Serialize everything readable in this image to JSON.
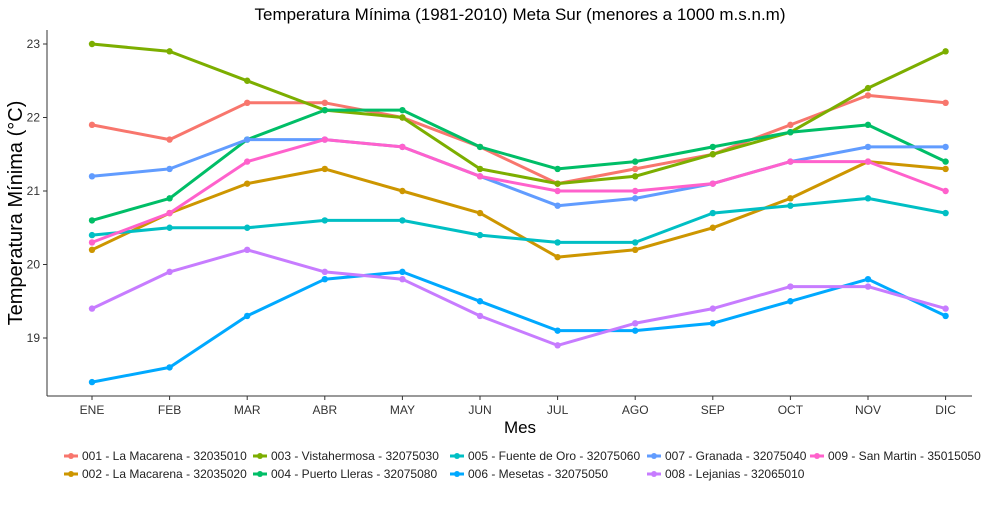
{
  "chart_data": {
    "type": "line",
    "title": "Temperatura Mínima (1981-2010) Meta Sur (menores a 1000 m.s.n.m)",
    "xlabel": "Mes",
    "ylabel": "Temperatura Mínima (°C)",
    "categories": [
      "ENE",
      "FEB",
      "MAR",
      "ABR",
      "MAY",
      "JUN",
      "JUL",
      "AGO",
      "SEP",
      "OCT",
      "NOV",
      "DIC"
    ],
    "ylim": [
      18.3,
      23.15
    ],
    "yticks": [
      19,
      20,
      21,
      22,
      23
    ],
    "grid": false,
    "legend_position": "bottom",
    "series": [
      {
        "name": "001 - La Macarena - 32035010",
        "color": "#F8766D",
        "values": [
          21.9,
          21.7,
          22.2,
          22.2,
          22.0,
          21.6,
          21.1,
          21.3,
          21.5,
          21.9,
          22.3,
          22.2
        ]
      },
      {
        "name": "002 - La Macarena - 32035020",
        "color": "#CD9600",
        "values": [
          20.2,
          20.7,
          21.1,
          21.3,
          21.0,
          20.7,
          20.1,
          20.2,
          20.5,
          20.9,
          21.4,
          21.3
        ]
      },
      {
        "name": "003 - Vistahermosa - 32075030",
        "color": "#7CAE00",
        "values": [
          23.0,
          22.9,
          22.5,
          22.1,
          22.0,
          21.3,
          21.1,
          21.2,
          21.5,
          21.8,
          22.4,
          22.9
        ]
      },
      {
        "name": "004 - Puerto Lleras - 32075080",
        "color": "#00BE67",
        "values": [
          20.6,
          20.9,
          21.7,
          22.1,
          22.1,
          21.6,
          21.3,
          21.4,
          21.6,
          21.8,
          21.9,
          21.4
        ]
      },
      {
        "name": "005 - Fuente de Oro - 32075060",
        "color": "#00BFC4",
        "values": [
          20.4,
          20.5,
          20.5,
          20.6,
          20.6,
          20.4,
          20.3,
          20.3,
          20.7,
          20.8,
          20.9,
          20.7
        ]
      },
      {
        "name": "006 - Mesetas - 32075050",
        "color": "#00A9FF",
        "values": [
          18.4,
          18.6,
          19.3,
          19.8,
          19.9,
          19.5,
          19.1,
          19.1,
          19.2,
          19.5,
          19.8,
          19.3
        ]
      },
      {
        "name": "007 - Granada - 32075040",
        "color": "#619CFF",
        "values": [
          21.2,
          21.3,
          21.7,
          21.7,
          21.6,
          21.2,
          20.8,
          20.9,
          21.1,
          21.4,
          21.6,
          21.6
        ]
      },
      {
        "name": "008 - Lejanias - 32065010",
        "color": "#C77CFF",
        "values": [
          19.4,
          19.9,
          20.2,
          19.9,
          19.8,
          19.3,
          18.9,
          19.2,
          19.4,
          19.7,
          19.7,
          19.4
        ]
      },
      {
        "name": "009 - San Martin - 35015050",
        "color": "#FF61CC",
        "values": [
          20.3,
          20.7,
          21.4,
          21.7,
          21.6,
          21.2,
          21.0,
          21.0,
          21.1,
          21.4,
          21.4,
          21.0
        ]
      }
    ]
  }
}
